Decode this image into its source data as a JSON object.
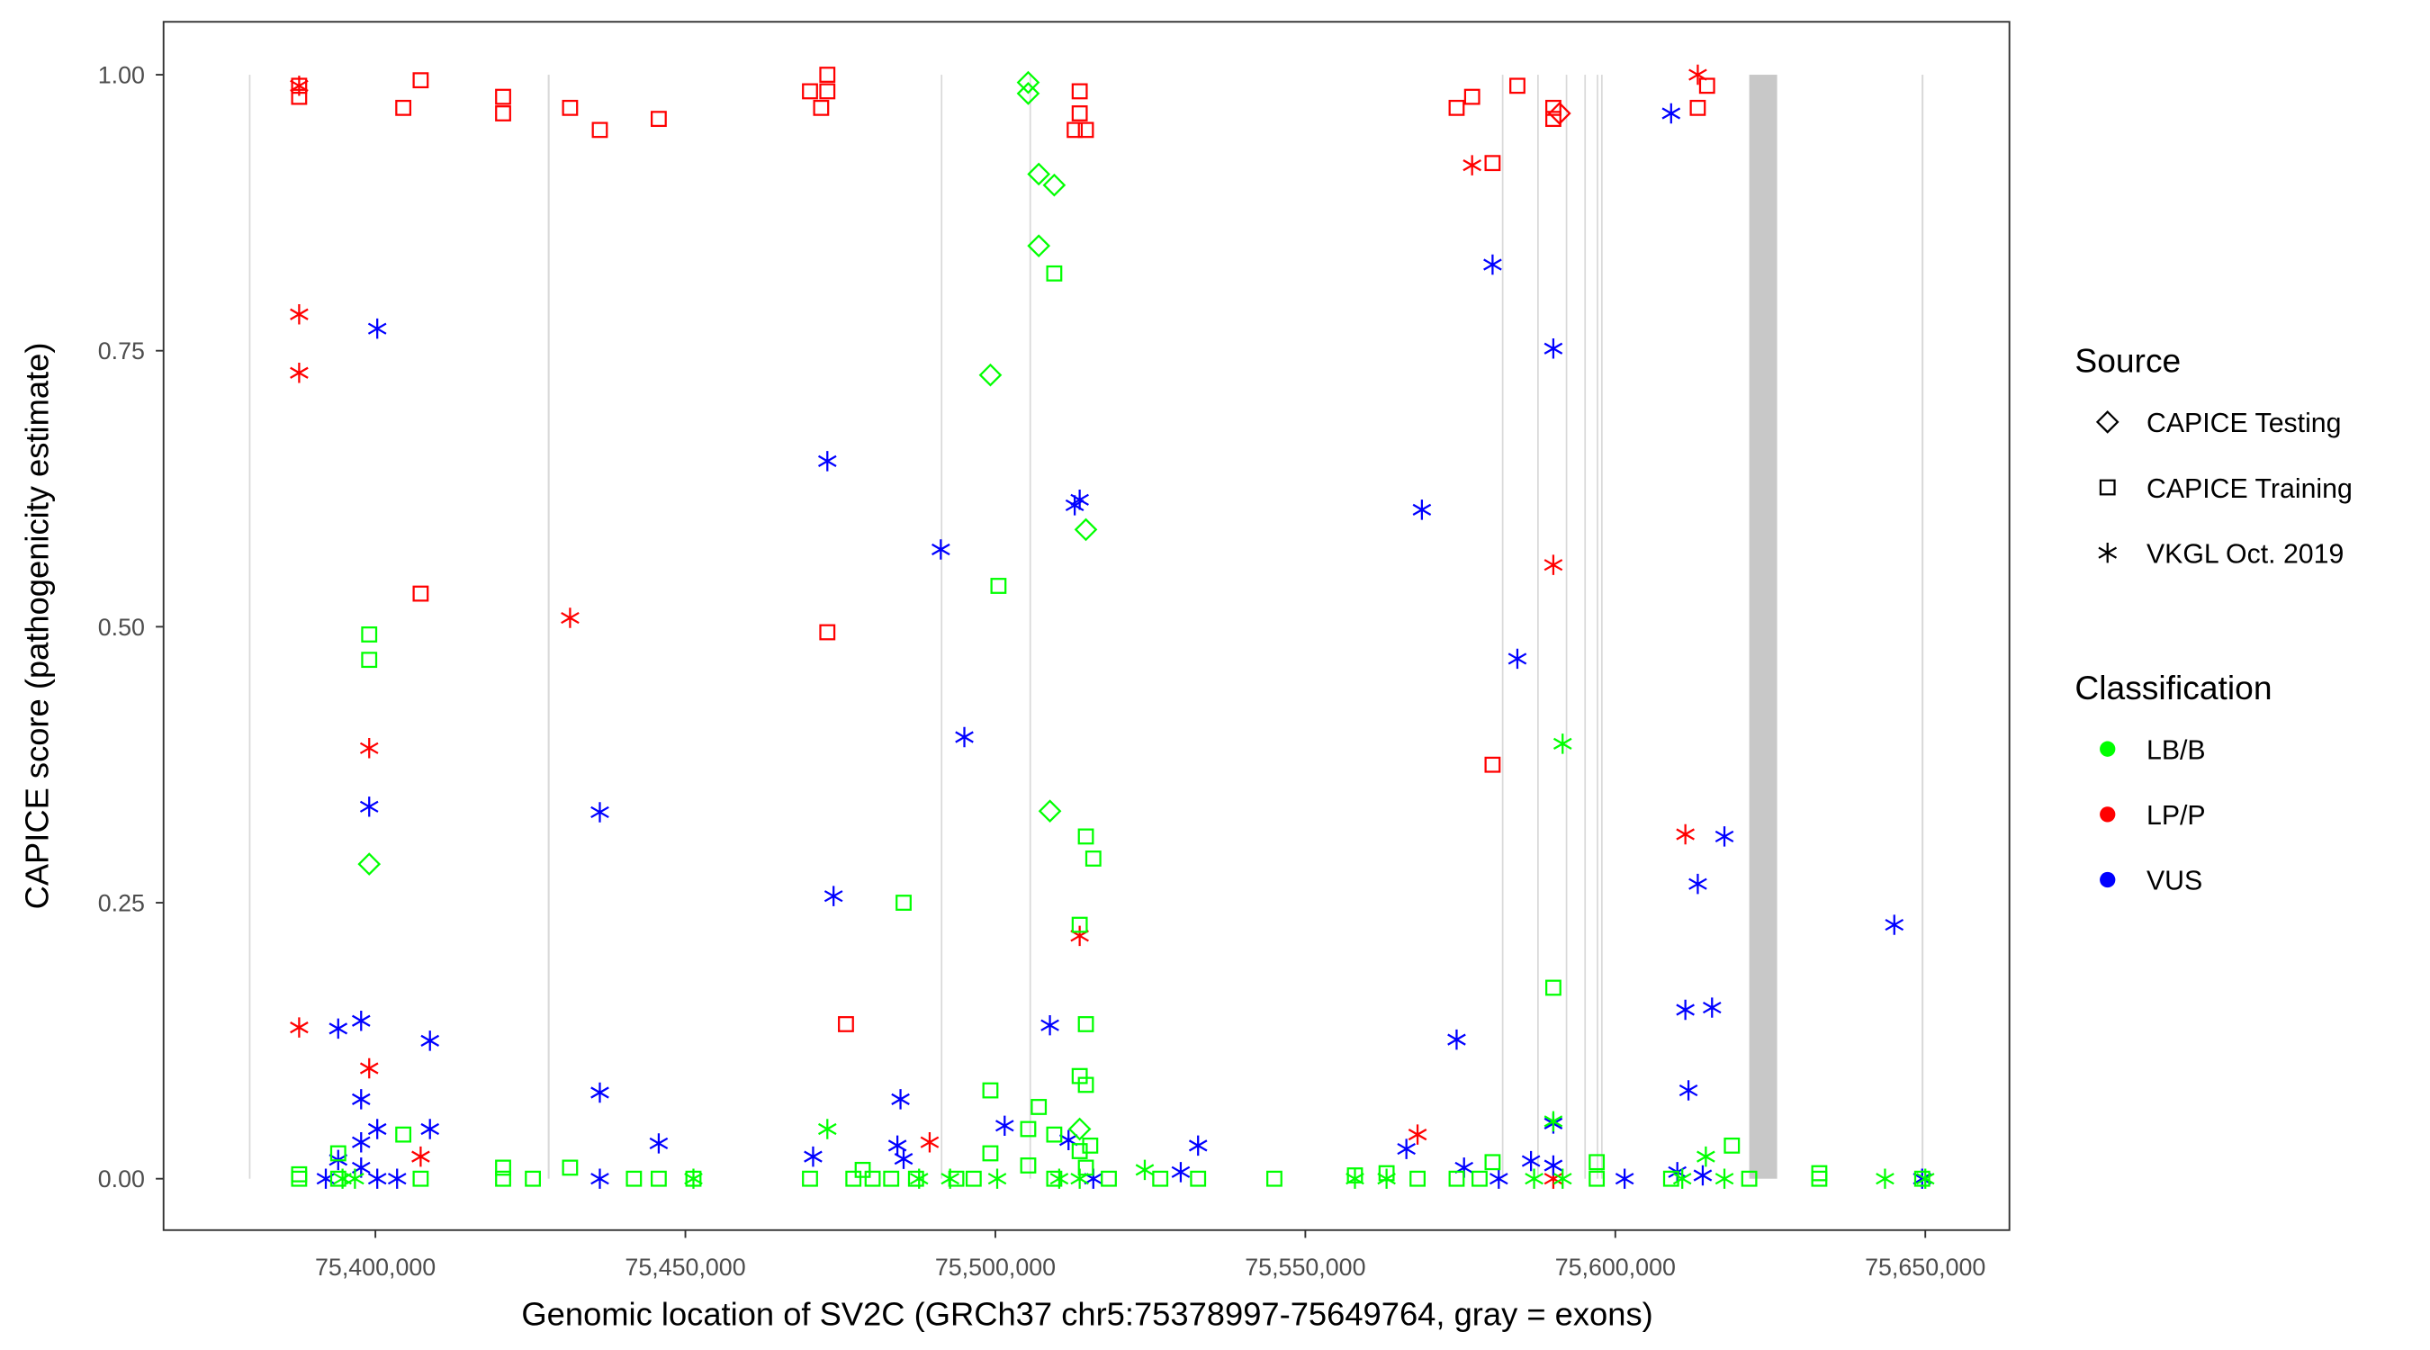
{
  "chart_data": {
    "type": "scatter",
    "xlabel": "Genomic location of SV2C (GRCh37 chr5:75378997-75649764, gray = exons)",
    "ylabel": "CAPICE score (pathogenicity estimate)",
    "x_unit": "kb",
    "xlim_kb": [
      75374,
      75664
    ],
    "ylim": [
      -0.05,
      1.05
    ],
    "x_ticks": [
      75400000,
      75450000,
      75500000,
      75550000,
      75600000,
      75650000
    ],
    "x_tick_labels": [
      "75,400,000",
      "75,450,000",
      "75,500,000",
      "75,550,000",
      "75,600,000",
      "75,650,000"
    ],
    "y_ticks": [
      0,
      0.25,
      0.5,
      0.75,
      1
    ],
    "y_tick_labels": [
      "0.00",
      "0.25",
      "0.50",
      "0.75",
      "1.00"
    ],
    "grid": false,
    "exons_kb": [
      [
        75379.6,
        75379.7
      ],
      [
        75427.8,
        75428.1
      ],
      [
        75491.2,
        75491.3
      ],
      [
        75505.5,
        75505.6
      ],
      [
        75581.7,
        75581.8
      ],
      [
        75587.4,
        75587.5
      ],
      [
        75592.0,
        75592.1
      ],
      [
        75595.0,
        75595.1
      ],
      [
        75597.0,
        75597.1
      ],
      [
        75597.7,
        75597.8
      ],
      [
        75621.6,
        75626.1
      ],
      [
        75649.4,
        75649.7
      ]
    ],
    "legend": {
      "position": "right",
      "source_title": "Source",
      "source_items": [
        {
          "label": "CAPICE Testing",
          "shape": "diamond"
        },
        {
          "label": "CAPICE Training",
          "shape": "square"
        },
        {
          "label": "VKGL Oct. 2019",
          "shape": "asterisk"
        }
      ],
      "class_title": "Classification",
      "class_items": [
        {
          "label": "LB/B",
          "color": "#00ff00"
        },
        {
          "label": "LP/P",
          "color": "#ff0000"
        },
        {
          "label": "VUS",
          "color": "#0000ff"
        }
      ]
    },
    "series": [
      {
        "source": "CAPICE Training",
        "class": "LP/P",
        "points_kb": [
          [
            75387.7,
            0.99
          ],
          [
            75387.7,
            0.98
          ],
          [
            75404.5,
            0.97
          ],
          [
            75407.3,
            0.995
          ],
          [
            75420.6,
            0.98
          ],
          [
            75420.6,
            0.965
          ],
          [
            75431.4,
            0.97
          ],
          [
            75436.2,
            0.95
          ],
          [
            75445.7,
            0.96
          ],
          [
            75470.1,
            0.985
          ],
          [
            75472.9,
            1.0
          ],
          [
            75472.9,
            0.985
          ],
          [
            75471.9,
            0.97
          ],
          [
            75513.6,
            0.985
          ],
          [
            75513.6,
            0.965
          ],
          [
            75514.6,
            0.95
          ],
          [
            75512.8,
            0.95
          ],
          [
            75574.4,
            0.97
          ],
          [
            75576.9,
            0.98
          ],
          [
            75584.2,
            0.99
          ],
          [
            75590.0,
            0.97
          ],
          [
            75590.0,
            0.96
          ],
          [
            75580.2,
            0.92
          ],
          [
            75613.3,
            0.97
          ],
          [
            75614.8,
            0.99
          ],
          [
            75407.3,
            0.53
          ],
          [
            75472.9,
            0.495
          ],
          [
            75475.9,
            0.14
          ],
          [
            75580.2,
            0.375
          ]
        ]
      },
      {
        "source": "VKGL Oct. 2019",
        "class": "LP/P",
        "points_kb": [
          [
            75387.7,
            0.99
          ],
          [
            75387.7,
            0.783
          ],
          [
            75387.7,
            0.73
          ],
          [
            75387.7,
            0.137
          ],
          [
            75399.0,
            0.39
          ],
          [
            75399.0,
            0.1
          ],
          [
            75407.3,
            0.02
          ],
          [
            75431.4,
            0.508
          ],
          [
            75489.4,
            0.033
          ],
          [
            75513.6,
            0.22
          ],
          [
            75568.1,
            0.04
          ],
          [
            75576.9,
            0.918
          ],
          [
            75590.0,
            0.556
          ],
          [
            75611.3,
            0.312
          ],
          [
            75613.3,
            1.0
          ],
          [
            75590.0,
            0.0
          ]
        ]
      },
      {
        "source": "CAPICE Testing",
        "class": "LP/P",
        "points_kb": [
          [
            75591.0,
            0.965
          ]
        ]
      },
      {
        "source": "VKGL Oct. 2019",
        "class": "VUS",
        "points_kb": [
          [
            75400.3,
            0.77
          ],
          [
            75399.0,
            0.337
          ],
          [
            75394.0,
            0.136
          ],
          [
            75397.7,
            0.143
          ],
          [
            75397.7,
            0.072
          ],
          [
            75408.8,
            0.125
          ],
          [
            75400.3,
            0.045
          ],
          [
            75408.8,
            0.045
          ],
          [
            75397.7,
            0.033
          ],
          [
            75394.0,
            0.017
          ],
          [
            75397.7,
            0.01
          ],
          [
            75392.0,
            0
          ],
          [
            75400.3,
            0
          ],
          [
            75403.5,
            0
          ],
          [
            75436.2,
            0.332
          ],
          [
            75436.2,
            0.078
          ],
          [
            75436.2,
            0
          ],
          [
            75445.7,
            0.032
          ],
          [
            75472.9,
            0.65
          ],
          [
            75473.9,
            0.256
          ],
          [
            75470.6,
            0.02
          ],
          [
            75484.2,
            0.03
          ],
          [
            75484.7,
            0.072
          ],
          [
            75485.2,
            0.018
          ],
          [
            75491.2,
            0.57
          ],
          [
            75495.0,
            0.4
          ],
          [
            75501.5,
            0.048
          ],
          [
            75508.8,
            0.139
          ],
          [
            75513.6,
            0.615
          ],
          [
            75512.8,
            0.61
          ],
          [
            75511.8,
            0.035
          ],
          [
            75515.8,
            0
          ],
          [
            75529.9,
            0.006
          ],
          [
            75532.7,
            0.03
          ],
          [
            75566.3,
            0.027
          ],
          [
            75568.8,
            0.606
          ],
          [
            75574.4,
            0.126
          ],
          [
            75575.6,
            0.01
          ],
          [
            75584.2,
            0.471
          ],
          [
            75580.2,
            0.828
          ],
          [
            75581.2,
            0
          ],
          [
            75586.4,
            0.016
          ],
          [
            75590.0,
            0.752
          ],
          [
            75590.0,
            0.05
          ],
          [
            75590.0,
            0.012
          ],
          [
            75601.5,
            0
          ],
          [
            75609.0,
            0.965
          ],
          [
            75610.0,
            0.006
          ],
          [
            75611.3,
            0.153
          ],
          [
            75611.8,
            0.08
          ],
          [
            75613.3,
            0.267
          ],
          [
            75615.6,
            0.155
          ],
          [
            75617.6,
            0.31
          ],
          [
            75614.1,
            0.003
          ],
          [
            75645.0,
            0.23
          ],
          [
            75649.5,
            0
          ]
        ]
      },
      {
        "source": "CAPICE Testing",
        "class": "LB/B",
        "points_kb": [
          [
            75505.3,
            0.993
          ],
          [
            75505.3,
            0.983
          ],
          [
            75507.0,
            0.91
          ],
          [
            75509.5,
            0.9
          ],
          [
            75507.0,
            0.845
          ],
          [
            75499.2,
            0.728
          ],
          [
            75514.6,
            0.588
          ],
          [
            75508.8,
            0.333
          ],
          [
            75399.0,
            0.285
          ],
          [
            75513.6,
            0.045
          ]
        ]
      },
      {
        "source": "CAPICE Training",
        "class": "LB/B",
        "points_kb": [
          [
            75399.0,
            0.493
          ],
          [
            75399.0,
            0.47
          ],
          [
            75509.5,
            0.82
          ],
          [
            75500.5,
            0.537
          ],
          [
            75514.6,
            0.31
          ],
          [
            75515.8,
            0.29
          ],
          [
            75485.2,
            0.25
          ],
          [
            75513.6,
            0.23
          ],
          [
            75590.0,
            0.173
          ],
          [
            75514.6,
            0.14
          ],
          [
            75499.2,
            0.08
          ],
          [
            75513.6,
            0.093
          ],
          [
            75514.6,
            0.085
          ],
          [
            75507.0,
            0.065
          ],
          [
            75505.3,
            0.045
          ],
          [
            75509.5,
            0.04
          ],
          [
            75404.5,
            0.04
          ],
          [
            75618.8,
            0.03
          ],
          [
            75394.0,
            0.023
          ],
          [
            75499.2,
            0.023
          ],
          [
            75597.0,
            0.015
          ],
          [
            75580.2,
            0.015
          ],
          [
            75420.6,
            0.01
          ],
          [
            75431.4,
            0.01
          ],
          [
            75478.6,
            0.008
          ],
          [
            75387.7,
            0.004
          ],
          [
            75387.7,
            0
          ],
          [
            75394.0,
            0
          ],
          [
            75407.3,
            0
          ],
          [
            75420.6,
            0
          ],
          [
            75425.4,
            0
          ],
          [
            75441.7,
            0
          ],
          [
            75445.7,
            0
          ],
          [
            75451.3,
            0
          ],
          [
            75470.1,
            0
          ],
          [
            75477.1,
            0
          ],
          [
            75480.2,
            0
          ],
          [
            75483.2,
            0
          ],
          [
            75487.2,
            0
          ],
          [
            75493.7,
            0
          ],
          [
            75496.5,
            0
          ],
          [
            75505.3,
            0.012
          ],
          [
            75509.5,
            0
          ],
          [
            75518.3,
            0
          ],
          [
            75526.6,
            0
          ],
          [
            75532.7,
            0
          ],
          [
            75545.0,
            0
          ],
          [
            75558.0,
            0.003
          ],
          [
            75563.1,
            0.005
          ],
          [
            75568.1,
            0
          ],
          [
            75574.4,
            0
          ],
          [
            75578.1,
            0
          ],
          [
            75597.0,
            0
          ],
          [
            75609.0,
            0
          ],
          [
            75621.6,
            0
          ],
          [
            75632.9,
            0.005
          ],
          [
            75632.9,
            0
          ],
          [
            75649.5,
            0
          ],
          [
            75513.6,
            0.025
          ],
          [
            75514.6,
            0.01
          ],
          [
            75515.3,
            0.03
          ]
        ]
      },
      {
        "source": "VKGL Oct. 2019",
        "class": "LB/B",
        "points_kb": [
          [
            75472.9,
            0.045
          ],
          [
            75591.5,
            0.394
          ],
          [
            75590.0,
            0.052
          ],
          [
            75614.6,
            0.02
          ],
          [
            75524.1,
            0.008
          ],
          [
            75451.3,
            0
          ],
          [
            75394.7,
            0
          ],
          [
            75396.7,
            0
          ],
          [
            75487.7,
            0
          ],
          [
            75492.7,
            0
          ],
          [
            75500.3,
            0
          ],
          [
            75510.3,
            0
          ],
          [
            75558.0,
            0
          ],
          [
            75563.1,
            0
          ],
          [
            75586.9,
            0
          ],
          [
            75591.5,
            0
          ],
          [
            75610.8,
            0
          ],
          [
            75617.6,
            0
          ],
          [
            75643.5,
            0
          ],
          [
            75650.0,
            0
          ],
          [
            75513.6,
            0
          ]
        ]
      }
    ]
  }
}
